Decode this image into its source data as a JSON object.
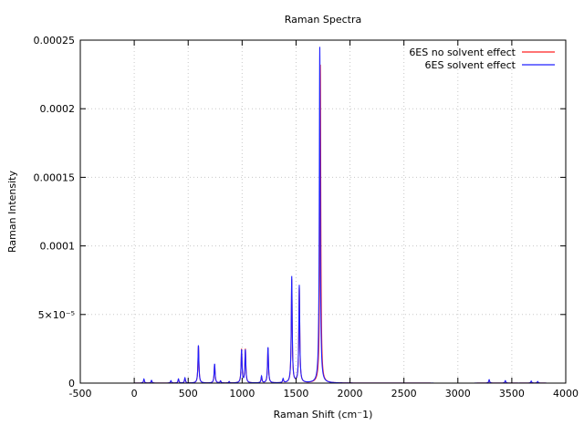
{
  "chart_data": {
    "type": "line",
    "title": "Raman Spectra",
    "xlabel": "Raman Shift (cm⁻1)",
    "ylabel": "Raman Intensity",
    "xlim": [
      -500,
      4000
    ],
    "ylim": [
      0,
      0.00025
    ],
    "x_ticks": [
      -500,
      0,
      500,
      1000,
      1500,
      2000,
      2500,
      3000,
      3500,
      4000
    ],
    "x_tick_labels": [
      "-500",
      "0",
      "500",
      "1000",
      "1500",
      "2000",
      "2500",
      "3000",
      "3500",
      "4000"
    ],
    "y_ticks": [
      0,
      5e-05,
      0.0001,
      0.00015,
      0.0002,
      0.00025
    ],
    "y_tick_labels": [
      "0",
      "5×10⁻⁵",
      "0.0001",
      "0.00015",
      "0.0002",
      "0.00025"
    ],
    "grid": true,
    "legend_position": "top-right",
    "series": [
      {
        "name": "6ES no solvent effect",
        "color": "#ff2020",
        "peaks": [
          {
            "x": 90,
            "y": 2.5e-06
          },
          {
            "x": 160,
            "y": 1.8e-06
          },
          {
            "x": 340,
            "y": 1.5e-06
          },
          {
            "x": 410,
            "y": 2.8e-06
          },
          {
            "x": 470,
            "y": 3.5e-06
          },
          {
            "x": 595,
            "y": 2.7e-05
          },
          {
            "x": 745,
            "y": 1.35e-05
          },
          {
            "x": 800,
            "y": 1.5e-06
          },
          {
            "x": 880,
            "y": 1e-06
          },
          {
            "x": 995,
            "y": 2.45e-05
          },
          {
            "x": 1030,
            "y": 2.45e-05
          },
          {
            "x": 1180,
            "y": 4.5e-06
          },
          {
            "x": 1240,
            "y": 2.55e-05
          },
          {
            "x": 1380,
            "y": 2.5e-06
          },
          {
            "x": 1460,
            "y": 7.5e-05
          },
          {
            "x": 1530,
            "y": 6.9e-05
          },
          {
            "x": 1725,
            "y": 0.000232
          },
          {
            "x": 3290,
            "y": 2e-06
          },
          {
            "x": 3440,
            "y": 1.5e-06
          },
          {
            "x": 3680,
            "y": 1.2e-06
          },
          {
            "x": 3740,
            "y": 1e-06
          }
        ]
      },
      {
        "name": "6ES solvent effect",
        "color": "#2020ff",
        "peaks": [
          {
            "x": 90,
            "y": 3e-06
          },
          {
            "x": 160,
            "y": 2e-06
          },
          {
            "x": 340,
            "y": 1.8e-06
          },
          {
            "x": 410,
            "y": 3e-06
          },
          {
            "x": 470,
            "y": 3.8e-06
          },
          {
            "x": 595,
            "y": 2.75e-05
          },
          {
            "x": 745,
            "y": 1.4e-05
          },
          {
            "x": 800,
            "y": 1.5e-06
          },
          {
            "x": 880,
            "y": 1e-06
          },
          {
            "x": 995,
            "y": 2.4e-05
          },
          {
            "x": 1030,
            "y": 2.4e-05
          },
          {
            "x": 1180,
            "y": 5e-06
          },
          {
            "x": 1240,
            "y": 2.6e-05
          },
          {
            "x": 1380,
            "y": 3e-06
          },
          {
            "x": 1460,
            "y": 7.75e-05
          },
          {
            "x": 1530,
            "y": 7.1e-05
          },
          {
            "x": 1720,
            "y": 0.000245
          },
          {
            "x": 3290,
            "y": 2.5e-06
          },
          {
            "x": 3440,
            "y": 1.8e-06
          },
          {
            "x": 3680,
            "y": 1.5e-06
          },
          {
            "x": 3740,
            "y": 1.2e-06
          }
        ]
      }
    ]
  }
}
